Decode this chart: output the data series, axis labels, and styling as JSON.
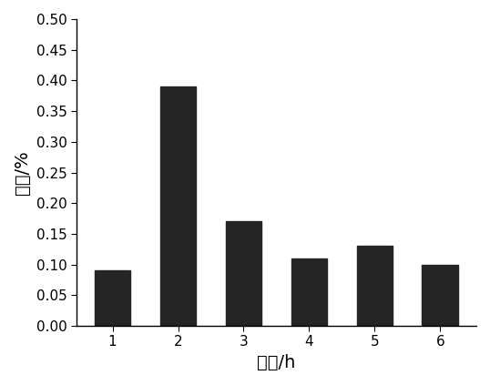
{
  "categories": [
    1,
    2,
    3,
    4,
    5,
    6
  ],
  "values": [
    0.09,
    0.39,
    0.17,
    0.11,
    0.13,
    0.1
  ],
  "bar_color": "#252525",
  "xlabel": "时段/h",
  "ylabel": "比例/%",
  "ylim": [
    0.0,
    0.5
  ],
  "yticks": [
    0.0,
    0.05,
    0.1,
    0.15,
    0.2,
    0.25,
    0.3,
    0.35,
    0.4,
    0.45,
    0.5
  ],
  "xticks": [
    1,
    2,
    3,
    4,
    5,
    6
  ],
  "xlabel_fontsize": 14,
  "ylabel_fontsize": 14,
  "tick_fontsize": 11,
  "bar_width": 0.55,
  "background_color": "#ffffff"
}
